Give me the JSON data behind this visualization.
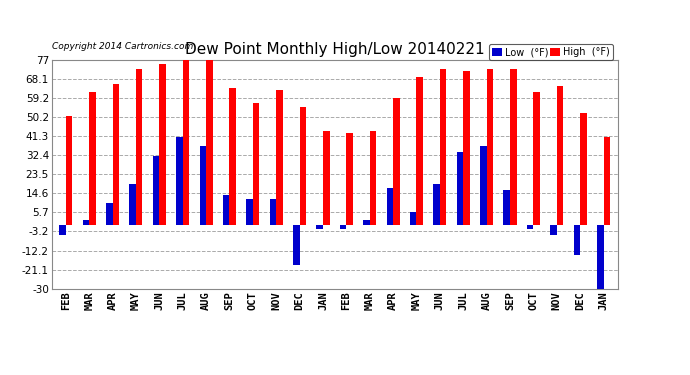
{
  "title": "Dew Point Monthly High/Low 20140221",
  "copyright": "Copyright 2014 Cartronics.com",
  "categories": [
    "FEB",
    "MAR",
    "APR",
    "MAY",
    "JUN",
    "JUL",
    "AUG",
    "SEP",
    "OCT",
    "NOV",
    "DEC",
    "JAN",
    "FEB",
    "MAR",
    "APR",
    "MAY",
    "JUN",
    "JUL",
    "AUG",
    "SEP",
    "OCT",
    "NOV",
    "DEC",
    "JAN"
  ],
  "high_values": [
    51.0,
    62.0,
    66.0,
    73.0,
    75.0,
    77.0,
    77.0,
    64.0,
    57.0,
    63.0,
    55.0,
    44.0,
    43.0,
    44.0,
    59.0,
    69.0,
    73.0,
    72.0,
    73.0,
    73.0,
    62.0,
    65.0,
    52.0,
    41.0
  ],
  "low_values": [
    -5.0,
    2.0,
    10.0,
    19.0,
    32.0,
    41.0,
    37.0,
    14.0,
    12.0,
    12.0,
    -19.0,
    -2.0,
    -2.0,
    2.0,
    17.0,
    6.0,
    19.0,
    34.0,
    37.0,
    16.0,
    -2.0,
    -5.0,
    -14.0,
    -30.0
  ],
  "high_color": "#ff0000",
  "low_color": "#0000cc",
  "bg_color": "#ffffff",
  "grid_color": "#aaaaaa",
  "ylim": [
    -30.0,
    77.0
  ],
  "yticks": [
    -30.0,
    -21.1,
    -12.2,
    -3.2,
    5.7,
    14.6,
    23.5,
    32.4,
    41.3,
    50.2,
    59.2,
    68.1,
    77.0
  ],
  "bar_width": 0.28,
  "title_fontsize": 11,
  "tick_fontsize": 7.5,
  "legend_low_label": "Low  (°F)",
  "legend_high_label": "High  (°F)"
}
